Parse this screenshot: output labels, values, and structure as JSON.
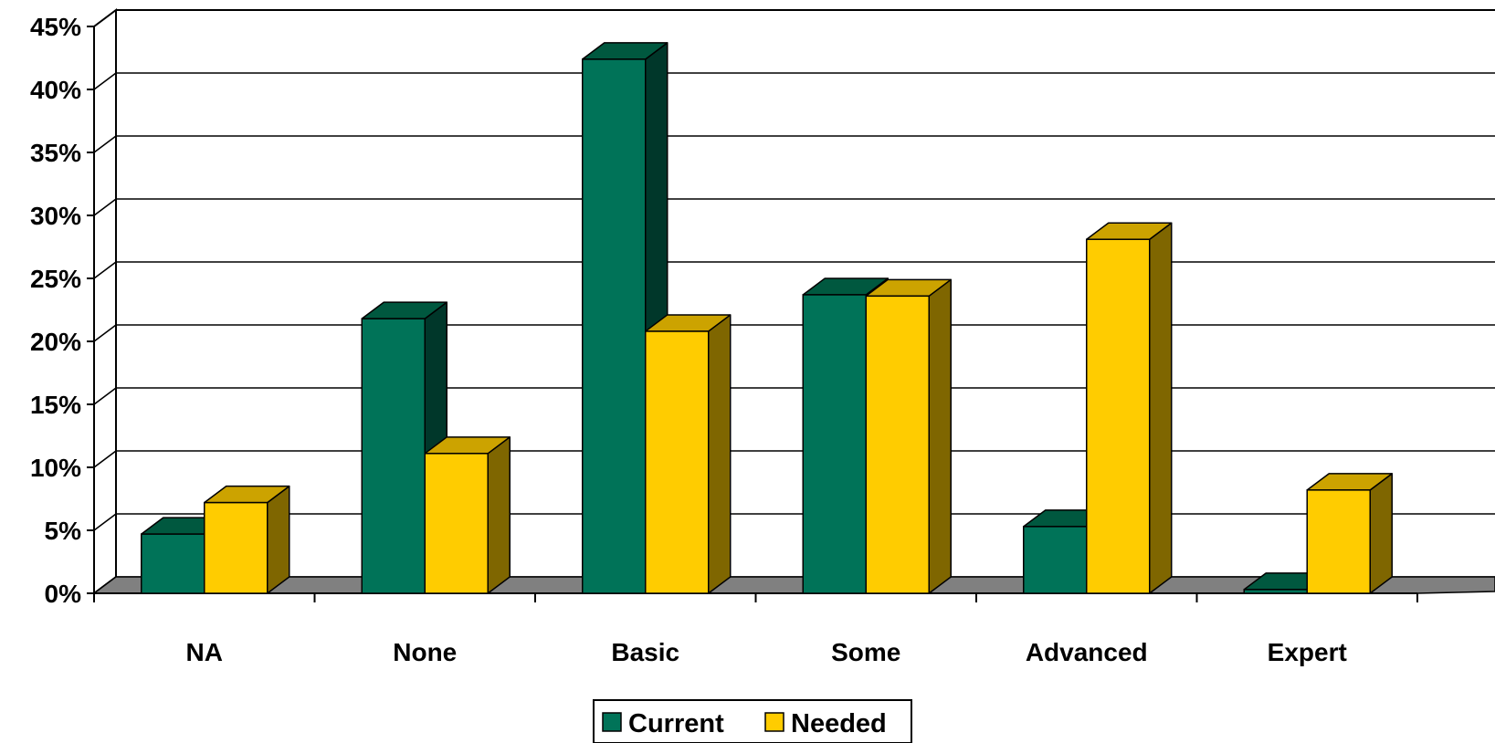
{
  "chart_data": {
    "type": "bar",
    "categories": [
      "NA",
      "None",
      "Basic",
      "Some",
      "Advanced",
      "Expert"
    ],
    "series": [
      {
        "name": "Current",
        "values": [
          4.7,
          21.8,
          42.4,
          23.7,
          5.3,
          0.3
        ],
        "color": "#007358",
        "side_color": "#00372A"
      },
      {
        "name": "Needed",
        "values": [
          7.2,
          11.1,
          20.8,
          23.6,
          28.1,
          8.2
        ],
        "color": "#FFCC00",
        "side_color": "#7F6600"
      }
    ],
    "y_ticks": [
      "0%",
      "5%",
      "10%",
      "15%",
      "20%",
      "25%",
      "30%",
      "35%",
      "40%",
      "45%"
    ],
    "ylim": [
      0,
      45
    ],
    "ytick_step": 5,
    "grid": true,
    "legend_position": "bottom-center",
    "floor_color": "#808080",
    "style": "3d-clustered-column"
  }
}
